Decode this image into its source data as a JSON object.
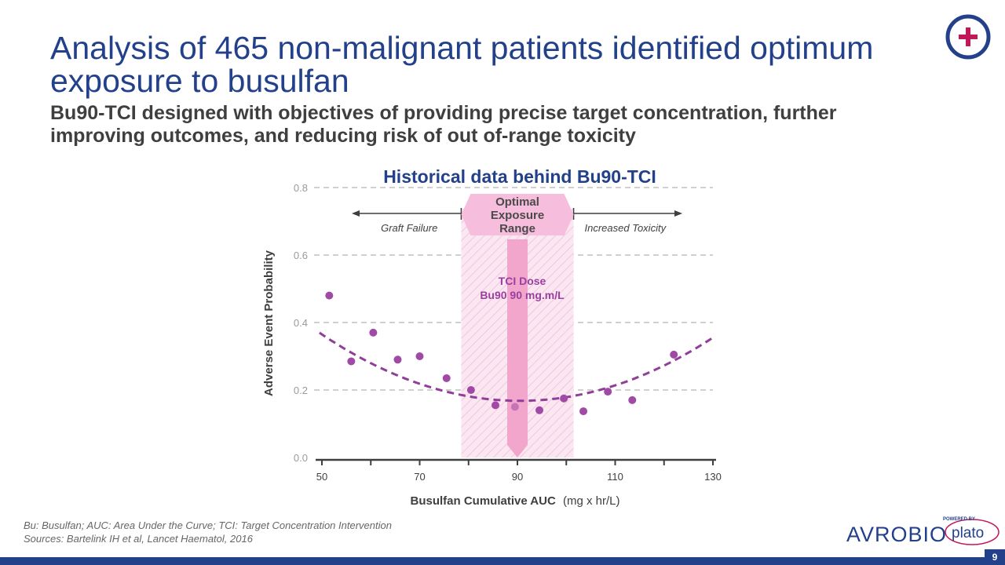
{
  "slide": {
    "title": "Analysis of 465 non-malignant patients identified optimum exposure to busulfan",
    "subtitle": "Bu90-TCI designed with objectives of providing precise target concentration, further improving outcomes, and reducing risk of out of-range toxicity",
    "page_number": "9",
    "footnote_line1": "Bu: Busulfan; AUC: Area Under the Curve; TCI: Target Concentration Intervention",
    "footnote_line2": "Sources: Bartelink IH et al, Lancet Haematol, 2016"
  },
  "brand": {
    "name": "AVROBIO",
    "powered_by": "POWERED BY",
    "platform": "plato",
    "navy": "#22418a",
    "magenta": "#c2185b"
  },
  "chart_data": {
    "type": "scatter",
    "title": "Historical data behind Bu90-TCI",
    "xlabel_bold": "Busulfan Cumulative AUC",
    "xlabel_units": "(mg x hr/L)",
    "ylabel": "Adverse Event Probability",
    "xlim": [
      50,
      130
    ],
    "ylim": [
      0,
      0.8
    ],
    "x_ticks": [
      50,
      70,
      90,
      110,
      130
    ],
    "y_ticks": [
      0.0,
      0.2,
      0.4,
      0.6,
      0.8
    ],
    "y_tick_labels": [
      "0.0",
      "0.2",
      "0.4",
      "0.6",
      "0.8"
    ],
    "grid": "horizontal dashed",
    "points": [
      {
        "x": 51.5,
        "y": 0.48
      },
      {
        "x": 56,
        "y": 0.285
      },
      {
        "x": 60.5,
        "y": 0.37
      },
      {
        "x": 65.5,
        "y": 0.29
      },
      {
        "x": 70,
        "y": 0.3
      },
      {
        "x": 75.5,
        "y": 0.235
      },
      {
        "x": 80.5,
        "y": 0.2
      },
      {
        "x": 85.5,
        "y": 0.155
      },
      {
        "x": 89.5,
        "y": 0.15
      },
      {
        "x": 94.5,
        "y": 0.14
      },
      {
        "x": 99.5,
        "y": 0.175
      },
      {
        "x": 103.5,
        "y": 0.137
      },
      {
        "x": 108.5,
        "y": 0.195
      },
      {
        "x": 113.5,
        "y": 0.17
      },
      {
        "x": 122,
        "y": 0.305
      }
    ],
    "fit_curve": {
      "style": "dashed",
      "description": "quadratic fit",
      "a": 0.00012,
      "vertex_x": 90.5,
      "vertex_y": 0.168,
      "x_range": [
        49.5,
        130
      ]
    },
    "optimal_range": {
      "x_start": 78.5,
      "x_end": 101.5,
      "label": "Optimal Exposure Range"
    },
    "tci_dose": {
      "x": 90,
      "label_line1": "TCI Dose",
      "label_line2": "Bu90 90 mg.m/L"
    },
    "annotations": {
      "graft_failure": "Graft Failure",
      "increased_toxicity": "Increased Toxicity"
    },
    "colors": {
      "points": "#a04aa6",
      "curve": "#8f3f98",
      "range_fill": "#f7bddc",
      "tci_arrow": "#f3a6cc",
      "tci_text": "#9b3fa0",
      "title": "#22418a",
      "axis_text": "#3f3f3f",
      "grid": "#d0d0d0"
    }
  }
}
